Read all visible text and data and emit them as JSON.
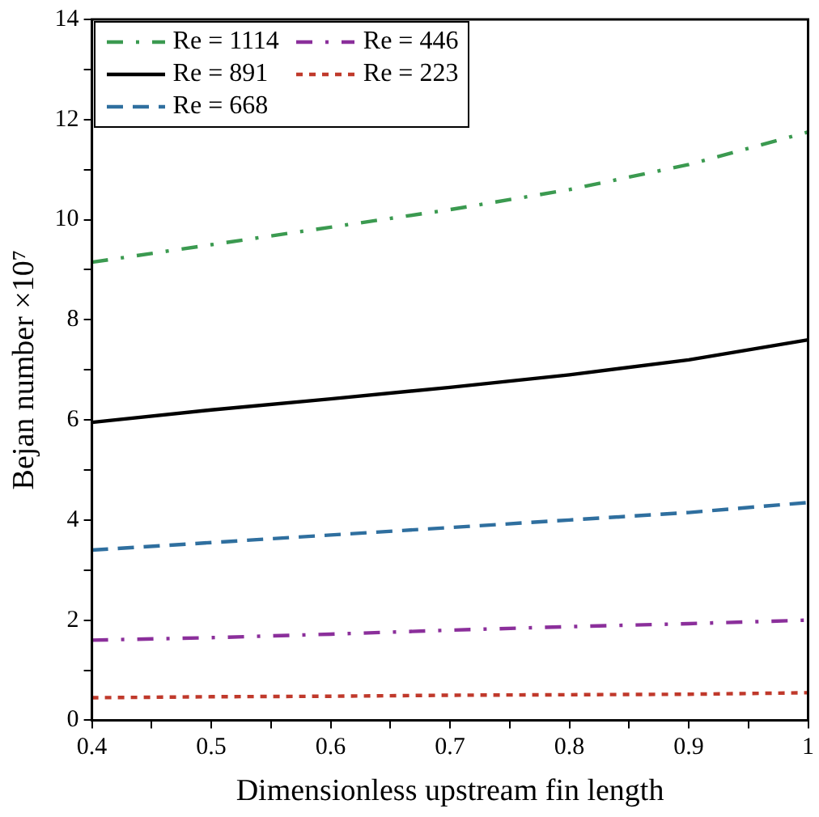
{
  "chart_data": {
    "type": "line",
    "xlabel": "Dimensionless upstream fin length",
    "ylabel": "Bejan number ×10⁷",
    "x": [
      0.4,
      0.5,
      0.6,
      0.7,
      0.8,
      0.9,
      1.0
    ],
    "series": [
      {
        "name": "Re = 1114",
        "color": "#3b9a50",
        "line_style": "dashdot",
        "values": [
          9.15,
          9.5,
          9.85,
          10.2,
          10.6,
          11.1,
          11.75
        ]
      },
      {
        "name": "Re = 891",
        "color": "#000000",
        "line_style": "solid",
        "values": [
          5.95,
          6.2,
          6.42,
          6.65,
          6.9,
          7.2,
          7.6
        ]
      },
      {
        "name": "Re = 668",
        "color": "#2f6f9f",
        "line_style": "dashed",
        "values": [
          3.4,
          3.55,
          3.7,
          3.85,
          4.0,
          4.15,
          4.35
        ]
      },
      {
        "name": "Re = 446",
        "color": "#8b2f9b",
        "line_style": "dashdot",
        "values": [
          1.6,
          1.65,
          1.72,
          1.8,
          1.87,
          1.93,
          2.0
        ]
      },
      {
        "name": "Re = 223",
        "color": "#c0392b",
        "line_style": "dotted",
        "values": [
          0.45,
          0.47,
          0.48,
          0.5,
          0.51,
          0.52,
          0.55
        ]
      }
    ],
    "xlim": [
      0.4,
      1
    ],
    "xticks": [
      0.4,
      {
        "value": 0.45,
        "label": null
      },
      0.5,
      {
        "value": 0.55,
        "label": null
      },
      0.6,
      {
        "value": 0.65,
        "label": null
      },
      0.7,
      {
        "value": 0.75,
        "label": null
      },
      0.8,
      {
        "value": 0.85,
        "label": null
      },
      0.9,
      {
        "value": 0.95,
        "label": null
      },
      {
        "value": 1,
        "label": "1"
      }
    ],
    "ylim": [
      0,
      14
    ],
    "yticks": [
      0,
      {
        "value": 1,
        "label": null
      },
      2,
      {
        "value": 3,
        "label": null
      },
      4,
      {
        "value": 5,
        "label": null
      },
      6,
      {
        "value": 7,
        "label": null
      },
      8,
      {
        "value": 9,
        "label": null
      },
      10,
      {
        "value": 11,
        "label": null
      },
      12,
      {
        "value": 13,
        "label": null
      },
      14
    ],
    "grid": false,
    "legend": "top left",
    "marker": "none"
  }
}
